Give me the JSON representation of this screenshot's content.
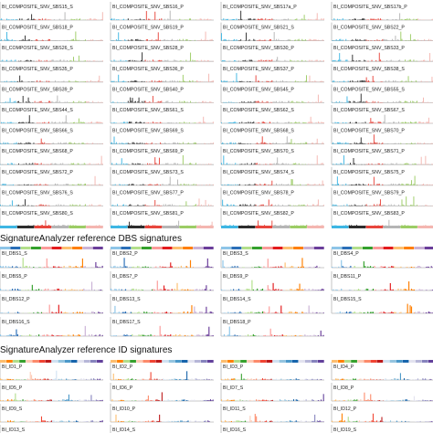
{
  "colors": {
    "sbs": [
      "#3eb6e3",
      "#2d2d2d",
      "#e8463d",
      "#b5b5b5",
      "#9ccc65",
      "#f4b6b0"
    ],
    "dbs": [
      "#8ec5e8",
      "#2a6fb8",
      "#b2df8a",
      "#33a02c",
      "#fb9a99",
      "#e31a1c",
      "#fdbf6f",
      "#ff7f00",
      "#cab2d6",
      "#6a3d9a"
    ],
    "id": [
      "#fdbe6f",
      "#ff8001",
      "#b0dd8b",
      "#36a12e",
      "#fdcab5",
      "#fc8a6a",
      "#f14432",
      "#bc191a",
      "#d0e1f2",
      "#94c4df",
      "#4a98c9",
      "#1764ab",
      "#e2e2ef",
      "#b6b6d8",
      "#8683bd",
      "#62409b"
    ],
    "frame": "#b8b8b8"
  },
  "sections": [
    {
      "title": ""
    },
    {
      "title": "SignatureAnalyzer reference DBS signatures"
    },
    {
      "title": "SignatureAnalyzer reference ID signatures"
    }
  ],
  "chart_data": [
    {
      "type": "bar",
      "panel_labels": [
        "BI_COMPOSITE_SNV_SBS15_S",
        "BI_COMPOSITE_SNV_SBS16_P",
        "BI_COMPOSITE_SNV_SBS17a_P",
        "BI_COMPOSITE_SNV_SBS17b_P",
        "BI_COMPOSITE_SNV_SBS18_P",
        "BI_COMPOSITE_SNV_SBS19_P",
        "BI_COMPOSITE_SNV_SBS21_S",
        "BI_COMPOSITE_SNV_SBS22_P",
        "BI_COMPOSITE_SNV_SBS26_S",
        "BI_COMPOSITE_SNV_SBS28_P",
        "BI_COMPOSITE_SNV_SBS30_P",
        "BI_COMPOSITE_SNV_SBS33_P",
        "BI_COMPOSITE_SNV_SBS35_P",
        "BI_COMPOSITE_SNV_SBS36_P",
        "BI_COMPOSITE_SNV_SBS37_P",
        "BI_COMPOSITE_SNV_SBS38_S",
        "BI_COMPOSITE_SNV_SBS39_P",
        "BI_COMPOSITE_SNV_SBS40_P",
        "BI_COMPOSITE_SNV_SBS45_P",
        "BI_COMPOSITE_SNV_SBS55_S",
        "BI_COMPOSITE_SNV_SBS44_S",
        "BI_COMPOSITE_SNV_SBS61_S",
        "BI_COMPOSITE_SNV_SBS62_S",
        "BI_COMPOSITE_SNV_SBS67_S",
        "BI_COMPOSITE_SNV_SBS66_S",
        "BI_COMPOSITE_SNV_SBS69_S",
        "BI_COMPOSITE_SNV_SBS68_S",
        "BI_COMPOSITE_SNV_SBS70_P",
        "BI_COMPOSITE_SNV_SBS68_P",
        "BI_COMPOSITE_SNV_SBS69_P",
        "BI_COMPOSITE_SNV_SBS70_S",
        "BI_COMPOSITE_SNV_SBS71_P",
        "BI_COMPOSITE_SNV_SBS72_P",
        "BI_COMPOSITE_SNV_SBS73_S",
        "BI_COMPOSITE_SNV_SBS74_S",
        "BI_COMPOSITE_SNV_SBS75_P",
        "BI_COMPOSITE_SNV_SBS76_S",
        "BI_COMPOSITE_SNV_SBS77_P",
        "BI_COMPOSITE_SNV_SBS78_P",
        "BI_COMPOSITE_SNV_SBS79_P",
        "BI_COMPOSITE_SNV_SBS80_S",
        "BI_COMPOSITE_SNV_SBS81_P",
        "BI_COMPOSITE_SNV_SBS82_P",
        "BI_COMPOSITE_SNV_SBS83_P"
      ]
    },
    {
      "type": "bar",
      "title": "SignatureAnalyzer reference DBS signatures",
      "panel_labels": [
        "BI_DBS1_S",
        "BI_DBS2_P",
        "BI_DBS3_S",
        "BI_DBS4_P",
        "BI_DBS5_P",
        "BI_DBS7_P",
        "BI_DBS9_P",
        "BI_DBS11_P",
        "BI_DBS12_P",
        "BI_DBS13_S",
        "BI_DBS14_S",
        "BI_DBS15_S",
        "BI_DBS16_S",
        "BI_DBS17_S",
        "BI_DBS18_P",
        ""
      ]
    },
    {
      "type": "bar",
      "title": "SignatureAnalyzer reference ID signatures",
      "panel_labels": [
        "BI_ID1_P",
        "BI_ID2_P",
        "BI_ID3_P",
        "BI_ID4_P",
        "BI_ID5_P",
        "BI_ID6_P",
        "BI_ID7_S",
        "BI_ID8_P",
        "BI_ID9_S",
        "BI_ID10_P",
        "BI_ID11_S",
        "BI_ID12_P",
        "BI_ID13_S",
        "BI_ID14_S",
        "BI_ID16_S",
        "BI_ID19_S"
      ]
    }
  ]
}
